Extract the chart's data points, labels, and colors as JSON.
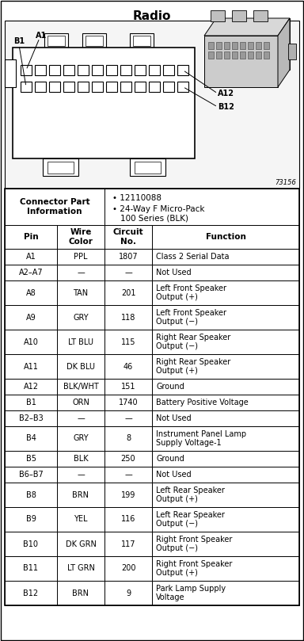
{
  "title": "Radio",
  "connector_part_label": "Connector Part\nInformation",
  "connector_info_line1": "  12110088",
  "connector_info_line2": "  24-Way F Micro-Pack",
  "connector_info_line3": "  100 Series (BLK)",
  "col_headers": [
    "Pin",
    "Wire\nColor",
    "Circuit\nNo.",
    "Function"
  ],
  "rows": [
    [
      "A1",
      "PPL",
      "1807",
      "Class 2 Serial Data"
    ],
    [
      "A2–A7",
      "—",
      "—",
      "Not Used"
    ],
    [
      "A8",
      "TAN",
      "201",
      "Left Front Speaker\nOutput (+)"
    ],
    [
      "A9",
      "GRY",
      "118",
      "Left Front Speaker\nOutput (−)"
    ],
    [
      "A10",
      "LT BLU",
      "115",
      "Right Rear Speaker\nOutput (−)"
    ],
    [
      "A11",
      "DK BLU",
      "46",
      "Right Rear Speaker\nOutput (+)"
    ],
    [
      "A12",
      "BLK/WHT",
      "151",
      "Ground"
    ],
    [
      "B1",
      "ORN",
      "1740",
      "Battery Positive Voltage"
    ],
    [
      "B2–B3",
      "—",
      "—",
      "Not Used"
    ],
    [
      "B4",
      "GRY",
      "8",
      "Instrument Panel Lamp\nSupply Voltage-1"
    ],
    [
      "B5",
      "BLK",
      "250",
      "Ground"
    ],
    [
      "B6–B7",
      "—",
      "—",
      "Not Used"
    ],
    [
      "B8",
      "BRN",
      "199",
      "Left Rear Speaker\nOutput (+)"
    ],
    [
      "B9",
      "YEL",
      "116",
      "Left Rear Speaker\nOutput (−)"
    ],
    [
      "B10",
      "DK GRN",
      "117",
      "Right Front Speaker\nOutput (−)"
    ],
    [
      "B11",
      "LT GRN",
      "200",
      "Right Front Speaker\nOutput (+)"
    ],
    [
      "B12",
      "BRN",
      "9",
      "Park Lamp Supply\nVoltage"
    ]
  ],
  "diagram_label": "73156",
  "bg_color": "#ffffff"
}
